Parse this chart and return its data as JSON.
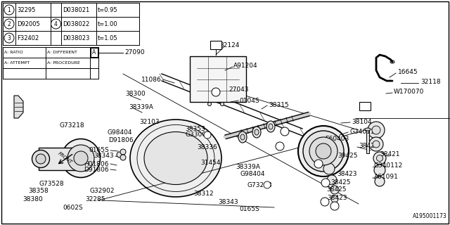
{
  "bg_color": "#ffffff",
  "border_color": "#000000",
  "line_color": "#000000",
  "text_color": "#000000",
  "table1_rows": [
    [
      "1",
      "32295",
      "",
      "D038021",
      "t=0.95"
    ],
    [
      "2",
      "D92005",
      "4",
      "D038022",
      "t=1.00"
    ],
    [
      "3",
      "F32402",
      "",
      "D038023",
      "t=1.05"
    ]
  ],
  "legend_col1": [
    "A: RATIO",
    "A: ATTEMPT"
  ],
  "legend_col2": [
    "A: DIFFERENT",
    "A: PROCEDURE"
  ],
  "bottom_label": "A195001173",
  "font_size": 6.5
}
